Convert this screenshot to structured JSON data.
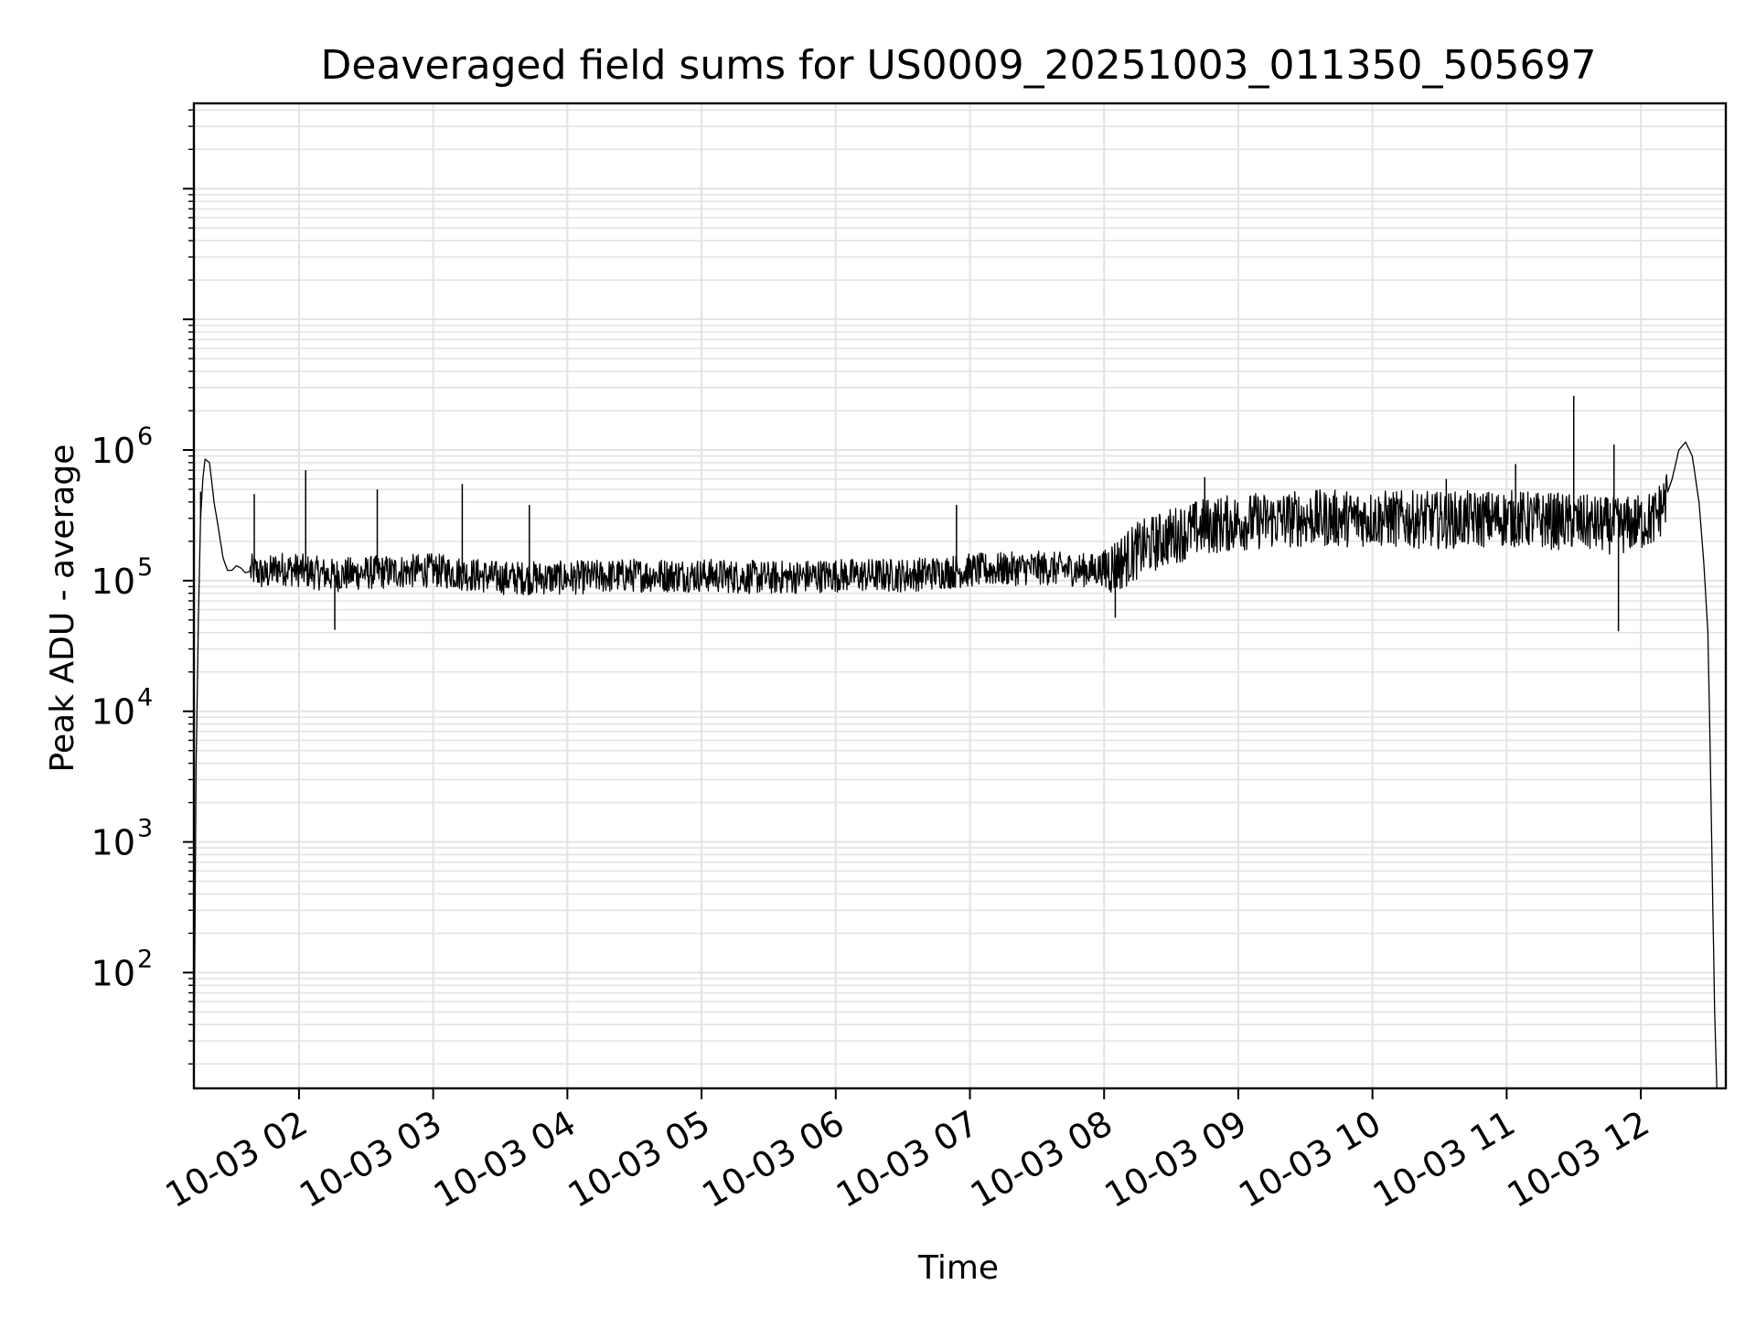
{
  "chart_data": {
    "type": "line",
    "title": "Deaveraged field sums for US0009_20251003_011350_505697",
    "xlabel": "Time",
    "ylabel": "Peak ADU - average",
    "y_scale": "log",
    "ylim": [
      13,
      450000000
    ],
    "xlim": [
      "2025-10-03 01:13",
      "2025-10-03 12:38"
    ],
    "grid": "major and minor",
    "legend": "none",
    "x_ticks": [
      {
        "value": "2025-10-03 02:00",
        "label": "10-03 02"
      },
      {
        "value": "2025-10-03 03:00",
        "label": "10-03 03"
      },
      {
        "value": "2025-10-03 04:00",
        "label": "10-03 04"
      },
      {
        "value": "2025-10-03 05:00",
        "label": "10-03 05"
      },
      {
        "value": "2025-10-03 06:00",
        "label": "10-03 06"
      },
      {
        "value": "2025-10-03 07:00",
        "label": "10-03 07"
      },
      {
        "value": "2025-10-03 08:00",
        "label": "10-03 08"
      },
      {
        "value": "2025-10-03 09:00",
        "label": "10-03 09"
      },
      {
        "value": "2025-10-03 10:00",
        "label": "10-03 10"
      },
      {
        "value": "2025-10-03 11:00",
        "label": "10-03 11"
      },
      {
        "value": "2025-10-03 12:00",
        "label": "10-03 12"
      }
    ],
    "y_ticks": [
      {
        "value": 100,
        "base": "10",
        "exp": "2"
      },
      {
        "value": 1000,
        "base": "10",
        "exp": "3"
      },
      {
        "value": 10000,
        "base": "10",
        "exp": "4"
      },
      {
        "value": 100000,
        "base": "10",
        "exp": "5"
      },
      {
        "value": 1000000,
        "base": "10",
        "exp": "6"
      }
    ],
    "series": [
      {
        "color": "#000000",
        "x": [
          "2025-10-03 01:13",
          "2025-10-03 01:14",
          "2025-10-03 01:15",
          "2025-10-03 01:16",
          "2025-10-03 01:17",
          "2025-10-03 01:18",
          "2025-10-03 01:20",
          "2025-10-03 01:22",
          "2025-10-03 01:24",
          "2025-10-03 01:26",
          "2025-10-03 01:28",
          "2025-10-03 01:30",
          "2025-10-03 01:32",
          "2025-10-03 01:34",
          "2025-10-03 01:36",
          "2025-10-03 01:40",
          "2025-10-03 01:45",
          "2025-10-03 01:50",
          "2025-10-03 02:00",
          "2025-10-03 02:15",
          "2025-10-03 02:30",
          "2025-10-03 03:00",
          "2025-10-03 03:30",
          "2025-10-03 04:00",
          "2025-10-03 04:30",
          "2025-10-03 05:00",
          "2025-10-03 05:30",
          "2025-10-03 06:00",
          "2025-10-03 06:30",
          "2025-10-03 07:00",
          "2025-10-03 07:30",
          "2025-10-03 07:55",
          "2025-10-03 08:05",
          "2025-10-03 08:15",
          "2025-10-03 08:30",
          "2025-10-03 08:45",
          "2025-10-03 09:00",
          "2025-10-03 09:30",
          "2025-10-03 10:00",
          "2025-10-03 10:30",
          "2025-10-03 11:00",
          "2025-10-03 11:30",
          "2025-10-03 11:50",
          "2025-10-03 12:00",
          "2025-10-03 12:06",
          "2025-10-03 12:10",
          "2025-10-03 12:14",
          "2025-10-03 12:17",
          "2025-10-03 12:20",
          "2025-10-03 12:23",
          "2025-10-03 12:26",
          "2025-10-03 12:28",
          "2025-10-03 12:30",
          "2025-10-03 12:31",
          "2025-10-03 12:32",
          "2025-10-03 12:33",
          "2025-10-03 12:34"
        ],
        "y": [
          13,
          4000,
          50000,
          300000,
          600000,
          850000,
          800000,
          400000,
          250000,
          150000,
          120000,
          120000,
          130000,
          125000,
          115000,
          120000,
          110000,
          125000,
          120000,
          110000,
          115000,
          120000,
          105000,
          105000,
          110000,
          110000,
          105000,
          110000,
          110000,
          120000,
          125000,
          120000,
          130000,
          170000,
          220000,
          260000,
          280000,
          300000,
          300000,
          290000,
          300000,
          280000,
          260000,
          280000,
          300000,
          380000,
          600000,
          1000000,
          1150000,
          900000,
          400000,
          150000,
          40000,
          5000,
          500,
          50,
          13
        ]
      }
    ],
    "spikes_max": [
      {
        "x": "2025-10-03 01:16",
        "y": 480000
      },
      {
        "x": "2025-10-03 01:40",
        "y": 460000
      },
      {
        "x": "2025-10-03 02:03",
        "y": 700000
      },
      {
        "x": "2025-10-03 02:35",
        "y": 500000
      },
      {
        "x": "2025-10-03 03:13",
        "y": 550000
      },
      {
        "x": "2025-10-03 03:43",
        "y": 380000
      },
      {
        "x": "2025-10-03 06:54",
        "y": 380000
      },
      {
        "x": "2025-10-03 08:45",
        "y": 620000
      },
      {
        "x": "2025-10-03 10:33",
        "y": 600000
      },
      {
        "x": "2025-10-03 11:04",
        "y": 780000
      },
      {
        "x": "2025-10-03 11:30",
        "y": 2600000
      },
      {
        "x": "2025-10-03 11:48",
        "y": 1100000
      }
    ],
    "spikes_min": [
      {
        "x": "2025-10-03 02:16",
        "y": 42000
      },
      {
        "x": "2025-10-03 08:05",
        "y": 52000
      },
      {
        "x": "2025-10-03 11:50",
        "y": 41000
      }
    ]
  }
}
